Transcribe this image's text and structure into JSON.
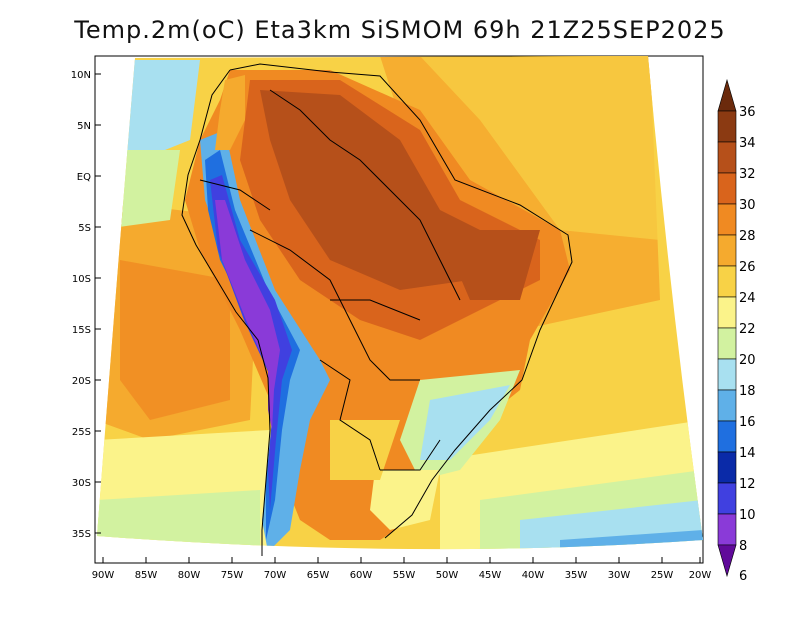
{
  "title": "Temp.2m(oC) Eta3km SiSMOM 69h 21Z25SEP2025",
  "lat_ticks": [
    "10N",
    "5N",
    "EQ",
    "5S",
    "10S",
    "15S",
    "20S",
    "25S",
    "30S",
    "35S"
  ],
  "lon_ticks": [
    "90W",
    "85W",
    "80W",
    "75W",
    "70W",
    "65W",
    "60W",
    "55W",
    "50W",
    "45W",
    "40W",
    "35W",
    "30W",
    "25W",
    "20W"
  ],
  "colorbar": {
    "labels": [
      "36",
      "34",
      "32",
      "30",
      "28",
      "26",
      "24",
      "22",
      "20",
      "18",
      "16",
      "14",
      "12",
      "10",
      "8",
      "6"
    ],
    "colors": [
      "#6b2a0c",
      "#8b3a12",
      "#b6501a",
      "#d9641c",
      "#f08a22",
      "#f5aa2e",
      "#f8d246",
      "#fbf38a",
      "#d2f2a0",
      "#a8e0f0",
      "#5fb0e8",
      "#1f6fe0",
      "#0a2aa8",
      "#4040e0",
      "#8a3ad8",
      "#600a9a"
    ]
  }
}
